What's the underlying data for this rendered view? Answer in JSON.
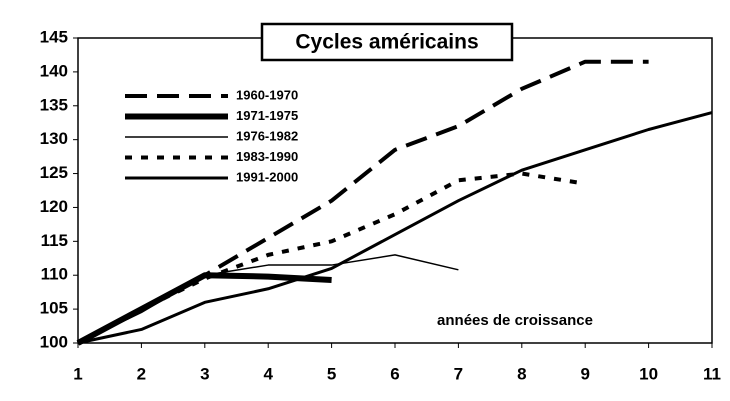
{
  "chart_data": {
    "type": "line",
    "title": "Cycles américains",
    "annotation": "années de croissance",
    "x": [
      1,
      2,
      3,
      4,
      5,
      6,
      7,
      8,
      9,
      10,
      11
    ],
    "xlim": [
      1,
      11
    ],
    "xticks": [
      1,
      2,
      3,
      4,
      5,
      6,
      7,
      8,
      9,
      10,
      11
    ],
    "ylim": [
      100,
      145
    ],
    "yticks": [
      100,
      105,
      110,
      115,
      120,
      125,
      130,
      135,
      140,
      145
    ],
    "legend": "upper left",
    "series": [
      {
        "name": "1960-1970",
        "color": "#000000",
        "width": 4,
        "dash": "22 10",
        "values": [
          100,
          105,
          110,
          115.5,
          121,
          128.5,
          132,
          137.5,
          141.5,
          141.5,
          null
        ]
      },
      {
        "name": "1971-1975",
        "color": "#000000",
        "width": 6,
        "dash": "none",
        "values": [
          100,
          105,
          110,
          109.8,
          109.3,
          null,
          null,
          null,
          null,
          null,
          null
        ]
      },
      {
        "name": "1976-1982",
        "color": "#000000",
        "width": 1.5,
        "dash": "none",
        "values": [
          100,
          104.5,
          110,
          111.5,
          111.5,
          113,
          110.8,
          null,
          null,
          null,
          null
        ]
      },
      {
        "name": "1983-1990",
        "color": "#000000",
        "width": 4,
        "dash": "7 9",
        "values": [
          100,
          105,
          109.5,
          113,
          115,
          119,
          124,
          125,
          123.5,
          null,
          null
        ]
      },
      {
        "name": "1991-2000",
        "color": "#000000",
        "width": 3,
        "dash": "none",
        "values": [
          100,
          102,
          106,
          108,
          111,
          116,
          121,
          125.5,
          128.5,
          131.5,
          134
        ]
      }
    ]
  }
}
